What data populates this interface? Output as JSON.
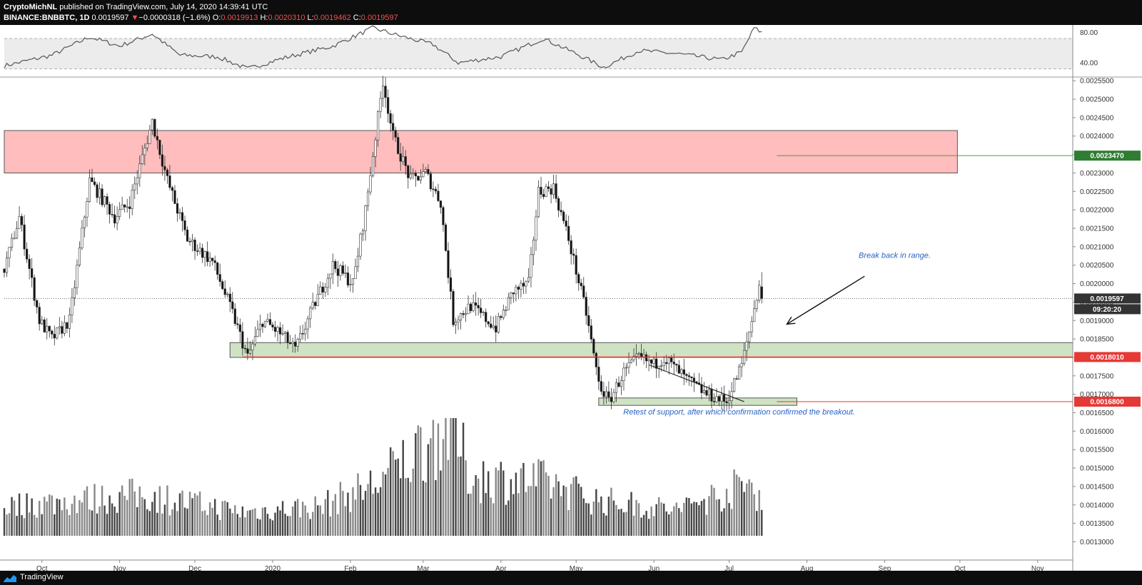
{
  "header": {
    "author": "CryptoMichNL",
    "published": "published on TradingView.com, July 14, 2020 14:39:41 UTC",
    "symbol": "BINANCE:BNBBTC, 1D",
    "last": "0.0019597",
    "change_arrow": "▼",
    "change": "−0.0000318 (−1.6%)",
    "o_label": "O:",
    "o_value": "0.0019913",
    "h_label": "H:",
    "h_value": "0.0020310",
    "l_label": "L:",
    "l_value": "0.0019462",
    "c_label": "C:",
    "c_value": "0.0019597"
  },
  "footer": {
    "brand": "TradingView",
    "logo_icon": "tradingview-logo-icon"
  },
  "colors": {
    "resistance_zone": "#ffbdbd",
    "support_zone": "#cfe3c4",
    "red_line": "#e53935",
    "green_line": "#43a047",
    "annotation": "#2962c8",
    "rsi_band": "#ececec"
  },
  "chart_data": {
    "type": "candlestick",
    "symbol": "BNBBTC",
    "interval": "1D",
    "x_tick_labels": [
      "Oct",
      "Nov",
      "Dec",
      "2020",
      "Feb",
      "Mar",
      "Apr",
      "May",
      "Jun",
      "Jul",
      "Aug",
      "Sep",
      "Oct",
      "Nov"
    ],
    "x_start": "2019-09-16",
    "x_end": "2020-11-15",
    "last_candle": "2020-07-14",
    "price_axis": {
      "ylim": [
        0.00127,
        0.00256
      ],
      "tick_labels": [
        "0.0025500",
        "0.0025000",
        "0.0024500",
        "0.0024000",
        "0.0023500",
        "0.0023000",
        "0.0022500",
        "0.0022000",
        "0.0021500",
        "0.0021000",
        "0.0020500",
        "0.0020000",
        "0.0019500",
        "0.0019000",
        "0.0018500",
        "0.0018000",
        "0.0017500",
        "0.0017000",
        "0.0016500",
        "0.0016000",
        "0.0015500",
        "0.0015000",
        "0.0014500",
        "0.0014000",
        "0.0013500",
        "0.0013000"
      ],
      "tick_values": [
        0.00255,
        0.0025,
        0.00245,
        0.0024,
        0.00235,
        0.0023,
        0.00225,
        0.0022,
        0.00215,
        0.0021,
        0.00205,
        0.002,
        0.00195,
        0.0019,
        0.00185,
        0.0018,
        0.00175,
        0.0017,
        0.00165,
        0.0016,
        0.00155,
        0.0015,
        0.00145,
        0.0014,
        0.00135,
        0.0013
      ]
    },
    "rsi_axis": {
      "ylim": [
        22,
        86
      ],
      "tick_labels": [
        "80.00",
        "40.00"
      ],
      "tick_values": [
        80,
        40
      ],
      "band": [
        30,
        70
      ]
    },
    "price_path_keypoints": [
      [
        "2019-09-16",
        0.00204
      ],
      [
        "2019-09-22",
        0.00218
      ],
      [
        "2019-09-30",
        0.0019
      ],
      [
        "2019-10-05",
        0.00185
      ],
      [
        "2019-10-12",
        0.0019
      ],
      [
        "2019-10-20",
        0.00228
      ],
      [
        "2019-10-30",
        0.00218
      ],
      [
        "2019-11-05",
        0.00222
      ],
      [
        "2019-11-14",
        0.00244
      ],
      [
        "2019-11-20",
        0.00228
      ],
      [
        "2019-11-28",
        0.00212
      ],
      [
        "2019-12-08",
        0.00206
      ],
      [
        "2019-12-16",
        0.00192
      ],
      [
        "2019-12-22",
        0.0018
      ],
      [
        "2019-12-28",
        0.0019
      ],
      [
        "2020-01-05",
        0.00186
      ],
      [
        "2020-01-10",
        0.00182
      ],
      [
        "2020-01-18",
        0.00195
      ],
      [
        "2020-01-25",
        0.00205
      ],
      [
        "2020-02-02",
        0.002
      ],
      [
        "2020-02-07",
        0.0022
      ],
      [
        "2020-02-14",
        0.00255
      ],
      [
        "2020-02-18",
        0.0024
      ],
      [
        "2020-02-25",
        0.00228
      ],
      [
        "2020-03-02",
        0.0023
      ],
      [
        "2020-03-08",
        0.00222
      ],
      [
        "2020-03-13",
        0.0019
      ],
      [
        "2020-03-20",
        0.00194
      ],
      [
        "2020-03-30",
        0.00188
      ],
      [
        "2020-04-06",
        0.00198
      ],
      [
        "2020-04-12",
        0.002
      ],
      [
        "2020-04-16",
        0.00225
      ],
      [
        "2020-04-22",
        0.00226
      ],
      [
        "2020-04-28",
        0.00212
      ],
      [
        "2020-05-05",
        0.00192
      ],
      [
        "2020-05-10",
        0.00173
      ],
      [
        "2020-05-14",
        0.00168
      ],
      [
        "2020-05-20",
        0.00176
      ],
      [
        "2020-05-26",
        0.0018
      ],
      [
        "2020-06-01",
        0.00178
      ],
      [
        "2020-06-05",
        0.0018
      ],
      [
        "2020-06-14",
        0.00174
      ],
      [
        "2020-06-22",
        0.0017
      ],
      [
        "2020-06-30",
        0.00168
      ],
      [
        "2020-07-06",
        0.00178
      ],
      [
        "2020-07-10",
        0.0019
      ],
      [
        "2020-07-13",
        0.002
      ],
      [
        "2020-07-14",
        0.0019597
      ]
    ],
    "last_candle_ohlc": {
      "open": 0.0019913,
      "high": 0.002031,
      "low": 0.0019462,
      "close": 0.0019597
    },
    "rsi_path_keypoints": [
      [
        "2019-09-16",
        34
      ],
      [
        "2019-10-05",
        48
      ],
      [
        "2019-10-20",
        72
      ],
      [
        "2019-11-01",
        60
      ],
      [
        "2019-11-14",
        76
      ],
      [
        "2019-11-25",
        48
      ],
      [
        "2019-12-10",
        46
      ],
      [
        "2019-12-22",
        30
      ],
      [
        "2020-01-05",
        44
      ],
      [
        "2020-01-25",
        60
      ],
      [
        "2020-02-10",
        84
      ],
      [
        "2020-02-20",
        74
      ],
      [
        "2020-03-05",
        62
      ],
      [
        "2020-03-15",
        38
      ],
      [
        "2020-04-01",
        46
      ],
      [
        "2020-04-18",
        70
      ],
      [
        "2020-05-01",
        50
      ],
      [
        "2020-05-12",
        32
      ],
      [
        "2020-05-26",
        54
      ],
      [
        "2020-06-10",
        50
      ],
      [
        "2020-06-28",
        42
      ],
      [
        "2020-07-06",
        52
      ],
      [
        "2020-07-11",
        84
      ],
      [
        "2020-07-14",
        78
      ]
    ],
    "volume_path_keypoints": [
      [
        "2019-09-16",
        0.25
      ],
      [
        "2019-10-15",
        0.3
      ],
      [
        "2019-11-10",
        0.35
      ],
      [
        "2019-12-20",
        0.2
      ],
      [
        "2020-01-20",
        0.25
      ],
      [
        "2020-02-12",
        0.45
      ],
      [
        "2020-03-12",
        0.95
      ],
      [
        "2020-03-20",
        0.5
      ],
      [
        "2020-04-20",
        0.45
      ],
      [
        "2020-05-10",
        0.3
      ],
      [
        "2020-06-10",
        0.22
      ],
      [
        "2020-07-10",
        0.45
      ],
      [
        "2020-07-14",
        0.3
      ]
    ],
    "zones": [
      {
        "kind": "resistance",
        "from": "2019-09-16",
        "to": "2020-09-30",
        "low": 0.0023,
        "high": 0.002415
      },
      {
        "kind": "support",
        "from": "2019-12-15",
        "to": "2020-11-15",
        "low": 0.0018,
        "high": 0.00184
      },
      {
        "kind": "support",
        "from": "2020-05-10",
        "to": "2020-07-28",
        "low": 0.00167,
        "high": 0.00169
      }
    ],
    "horizontal_lines": [
      {
        "price": 0.002347,
        "color": "green",
        "label": "0.0023470"
      },
      {
        "price": 0.001801,
        "color": "red",
        "label": "0.0018010"
      },
      {
        "price": 0.00168,
        "color": "red",
        "label": "0.0016800"
      }
    ],
    "current_price": {
      "price": 0.0019597,
      "label": "0.0019597",
      "countdown": "09:20:20"
    },
    "trendline": {
      "from": [
        "2020-05-30",
        0.00178
      ],
      "to": [
        "2020-07-07",
        0.00168
      ]
    },
    "arrow": {
      "from": [
        "2020-08-24",
        0.00202
      ],
      "to": [
        "2020-07-24",
        0.00189
      ]
    },
    "annotations": [
      {
        "text": "Break back in range.",
        "at": [
          "2020-09-05",
          0.00207
        ]
      },
      {
        "text": "Retest of support, after which confirmation confirmed the breakout.",
        "at": [
          "2020-07-05",
          0.001645
        ]
      }
    ]
  }
}
